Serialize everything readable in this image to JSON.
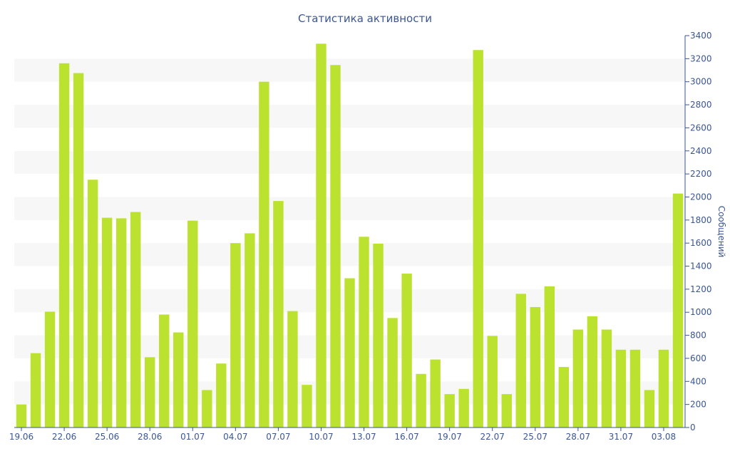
{
  "chart_data": {
    "type": "bar",
    "title": "Статистика активности",
    "xlabel": "",
    "ylabel": "Сообщений",
    "ylim": [
      0,
      3400
    ],
    "y_ticks": [
      0,
      200,
      400,
      600,
      800,
      1000,
      1200,
      1400,
      1600,
      1800,
      2000,
      2200,
      2400,
      2600,
      2800,
      3000,
      3200,
      3400
    ],
    "y_axis_side": "right",
    "grid": "alternating horizontal bands",
    "categories": [
      "19.06",
      "20.06",
      "21.06",
      "22.06",
      "23.06",
      "24.06",
      "25.06",
      "26.06",
      "27.06",
      "28.06",
      "29.06",
      "30.06",
      "01.07",
      "02.07",
      "03.07",
      "04.07",
      "05.07",
      "06.07",
      "07.07",
      "08.07",
      "09.07",
      "10.07",
      "11.07",
      "12.07",
      "13.07",
      "14.07",
      "15.07",
      "16.07",
      "17.07",
      "18.07",
      "19.07",
      "20.07",
      "21.07",
      "22.07",
      "23.07",
      "24.07",
      "25.07",
      "26.07",
      "27.07",
      "28.07",
      "29.07",
      "30.07",
      "31.07",
      "01.08",
      "02.08",
      "03.08",
      "04.08"
    ],
    "tick_label_every": 3,
    "values": [
      200,
      645,
      1005,
      3160,
      3075,
      2150,
      1820,
      1815,
      1870,
      610,
      980,
      825,
      1795,
      325,
      555,
      1600,
      1685,
      3000,
      1965,
      1010,
      370,
      3330,
      3145,
      1295,
      1655,
      1595,
      950,
      1335,
      465,
      590,
      290,
      335,
      3275,
      795,
      290,
      1160,
      1045,
      1225,
      525,
      850,
      965,
      850,
      675,
      675,
      325,
      675,
      2030
    ],
    "colors": {
      "bar": "#bce230",
      "band": "#f7f7f7",
      "axis": "#3a5695",
      "text": "#3a5695"
    }
  }
}
